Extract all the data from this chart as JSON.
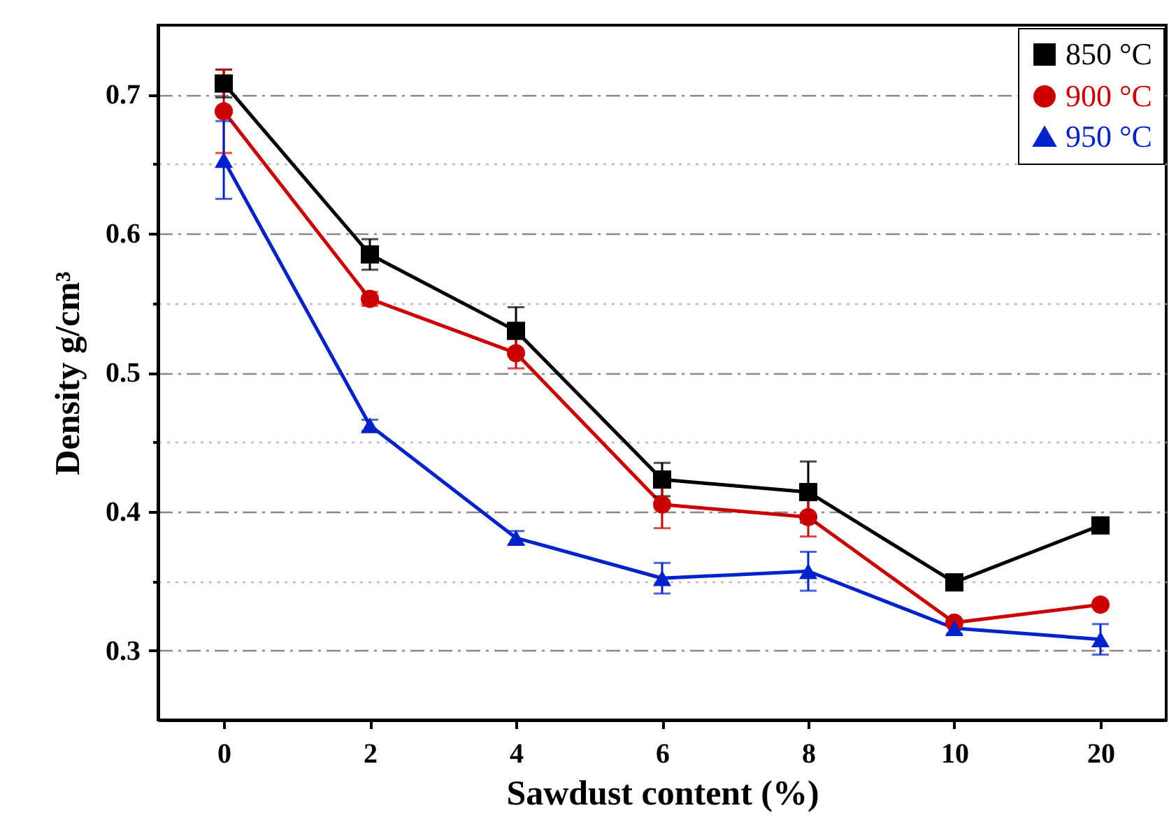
{
  "chart_data": {
    "type": "line",
    "xlabel": "Sawdust content (%)",
    "ylabel": "Density g/cm³",
    "categories": [
      "0",
      "2",
      "4",
      "6",
      "8",
      "10",
      "20"
    ],
    "ylim": [
      0.25,
      0.75
    ],
    "yticks": [
      {
        "value": 0.3,
        "label": "0.3"
      },
      {
        "value": 0.35,
        "label": null
      },
      {
        "value": 0.4,
        "label": "0.4"
      },
      {
        "value": 0.45,
        "label": null
      },
      {
        "value": 0.5,
        "label": "0.5"
      },
      {
        "value": 0.55,
        "label": null
      },
      {
        "value": 0.6,
        "label": "0.6"
      },
      {
        "value": 0.65,
        "label": null
      },
      {
        "value": 0.7,
        "label": "0.7"
      }
    ],
    "grid": "y",
    "legend": "top right",
    "line_style": "solid",
    "series": [
      {
        "name": "850 °C",
        "color": "#000000",
        "marker": "square",
        "values": [
          0.708,
          0.585,
          0.53,
          0.423,
          0.414,
          0.349,
          0.39
        ],
        "errors": [
          0.01,
          0.011,
          0.017,
          0.012,
          0.022,
          null,
          null
        ]
      },
      {
        "name": "900 °C",
        "color": "#cc0000",
        "marker": "circle",
        "values": [
          0.688,
          0.553,
          0.514,
          0.405,
          0.396,
          0.32,
          0.333
        ],
        "errors": [
          0.03,
          0.005,
          0.011,
          0.017,
          0.014,
          null,
          null
        ]
      },
      {
        "name": "950 °C",
        "color": "#0022cc",
        "marker": "triangle",
        "values": [
          0.653,
          0.462,
          0.381,
          0.352,
          0.357,
          0.316,
          0.308
        ],
        "errors": [
          0.028,
          0.004,
          0.005,
          0.011,
          0.014,
          0.004,
          0.011
        ]
      }
    ]
  }
}
